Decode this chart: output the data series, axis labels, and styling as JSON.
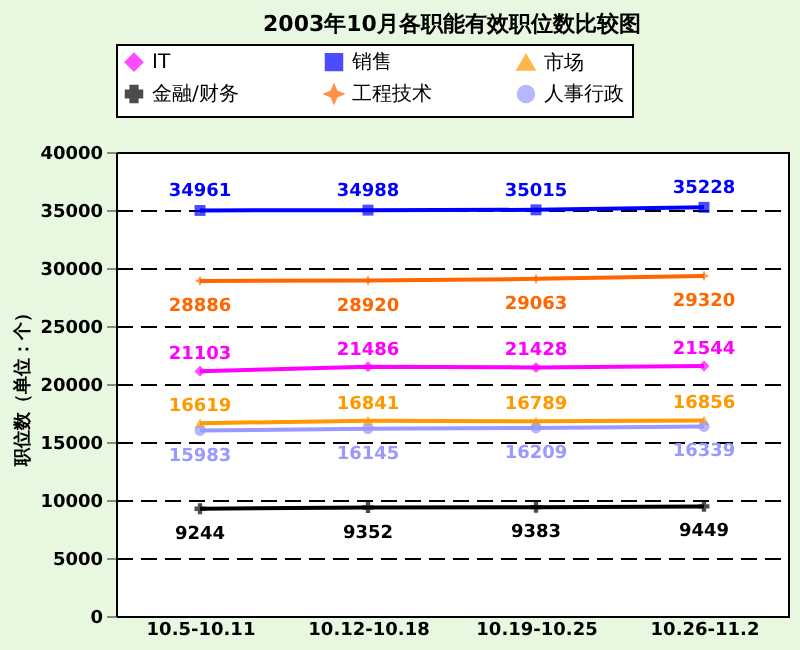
{
  "chart_data": {
    "type": "line",
    "title": "2003年10月各职能有效职位数比较图",
    "ylabel": "职位数（单位：个）",
    "categories": [
      "10.5-10.11",
      "10.12-10.18",
      "10.19-10.25",
      "10.26-11.2"
    ],
    "series": [
      {
        "name": "IT",
        "color": "#ff00ff",
        "marker": "diamond",
        "values": [
          21103,
          21486,
          21428,
          21544
        ]
      },
      {
        "name": "销售",
        "color": "#0000ff",
        "marker": "square",
        "values": [
          34961,
          34988,
          35015,
          35228
        ]
      },
      {
        "name": "市场",
        "color": "#ff9900",
        "marker": "triangle",
        "values": [
          16619,
          16841,
          16789,
          16856
        ]
      },
      {
        "name": "金融/财务",
        "color": "#000000",
        "marker": "cross",
        "values": [
          9244,
          9352,
          9383,
          9449
        ]
      },
      {
        "name": "工程技术",
        "color": "#ff6600",
        "marker": "star",
        "values": [
          28886,
          28920,
          29063,
          29320
        ]
      },
      {
        "name": "人事行政",
        "color": "#9999ff",
        "marker": "circle",
        "values": [
          15983,
          16145,
          16209,
          16339
        ]
      }
    ],
    "ylim": [
      0,
      40000
    ],
    "yticks": [
      0,
      5000,
      10000,
      15000,
      20000,
      25000,
      30000,
      35000,
      40000
    ],
    "grid": "y",
    "legend": "top",
    "data_labels": true,
    "line_style": "solid"
  }
}
